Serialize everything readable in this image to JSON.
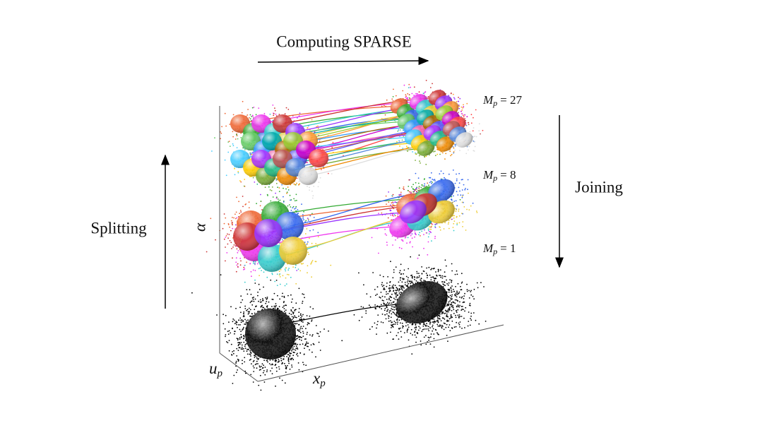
{
  "header": {
    "title": "Computing SPARSE"
  },
  "left_label": "Splitting",
  "right_label": "Joining",
  "axes": {
    "vertical": "α",
    "depth": {
      "symbol": "u",
      "subscript": "p"
    },
    "horizontal": {
      "symbol": "x",
      "subscript": "p"
    }
  },
  "levels": [
    {
      "symbol": "M",
      "subscript": "p",
      "rest": "= 27"
    },
    {
      "symbol": "M",
      "subscript": "p",
      "rest": "= 8"
    },
    {
      "symbol": "M",
      "subscript": "p",
      "rest": "= 1"
    }
  ]
}
